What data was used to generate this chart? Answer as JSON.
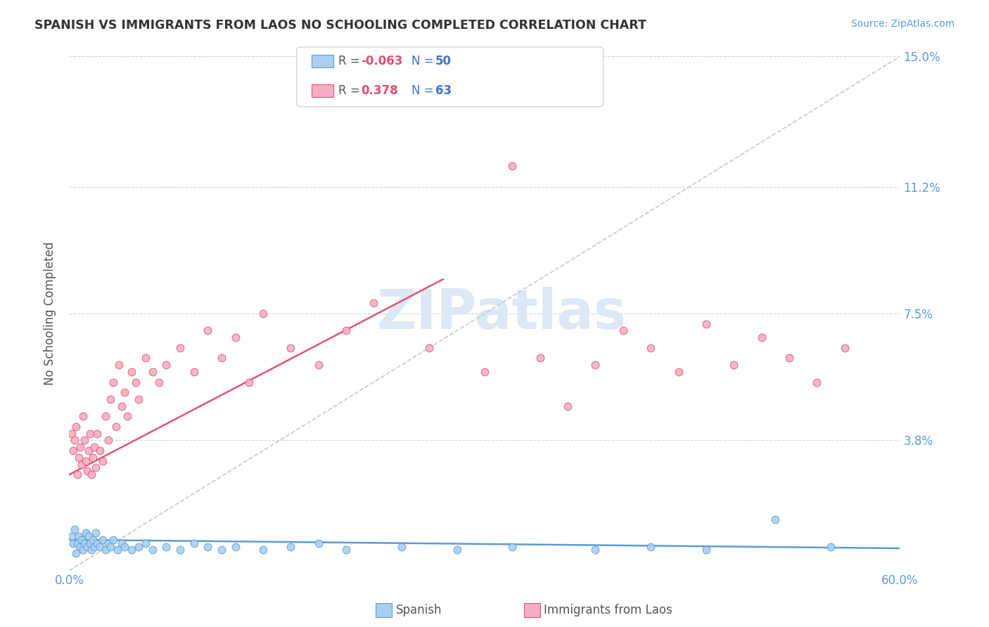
{
  "title": "SPANISH VS IMMIGRANTS FROM LAOS NO SCHOOLING COMPLETED CORRELATION CHART",
  "source": "Source: ZipAtlas.com",
  "ylabel": "No Schooling Completed",
  "xlim": [
    0.0,
    0.6
  ],
  "ylim": [
    0.0,
    0.15
  ],
  "ytick_labels": [
    "3.8%",
    "7.5%",
    "11.2%",
    "15.0%"
  ],
  "ytick_values": [
    0.038,
    0.075,
    0.112,
    0.15
  ],
  "background_color": "#ffffff",
  "spanish_scatter": {
    "x": [
      0.002,
      0.003,
      0.004,
      0.005,
      0.006,
      0.007,
      0.008,
      0.009,
      0.01,
      0.011,
      0.012,
      0.013,
      0.014,
      0.015,
      0.016,
      0.017,
      0.018,
      0.019,
      0.02,
      0.022,
      0.024,
      0.026,
      0.028,
      0.03,
      0.032,
      0.035,
      0.038,
      0.04,
      0.045,
      0.05,
      0.055,
      0.06,
      0.07,
      0.08,
      0.09,
      0.1,
      0.11,
      0.12,
      0.14,
      0.16,
      0.18,
      0.2,
      0.24,
      0.28,
      0.32,
      0.38,
      0.42,
      0.46,
      0.51,
      0.55
    ],
    "y": [
      0.01,
      0.008,
      0.012,
      0.005,
      0.008,
      0.01,
      0.007,
      0.009,
      0.006,
      0.008,
      0.011,
      0.007,
      0.01,
      0.008,
      0.006,
      0.009,
      0.007,
      0.011,
      0.008,
      0.007,
      0.009,
      0.006,
      0.008,
      0.007,
      0.009,
      0.006,
      0.008,
      0.007,
      0.006,
      0.007,
      0.008,
      0.006,
      0.007,
      0.006,
      0.008,
      0.007,
      0.006,
      0.007,
      0.006,
      0.007,
      0.008,
      0.006,
      0.007,
      0.006,
      0.007,
      0.006,
      0.007,
      0.006,
      0.015,
      0.007
    ]
  },
  "laos_scatter": {
    "x": [
      0.002,
      0.003,
      0.004,
      0.005,
      0.006,
      0.007,
      0.008,
      0.009,
      0.01,
      0.011,
      0.012,
      0.013,
      0.014,
      0.015,
      0.016,
      0.017,
      0.018,
      0.019,
      0.02,
      0.022,
      0.024,
      0.026,
      0.028,
      0.03,
      0.032,
      0.034,
      0.036,
      0.038,
      0.04,
      0.042,
      0.045,
      0.048,
      0.05,
      0.055,
      0.06,
      0.065,
      0.07,
      0.08,
      0.09,
      0.1,
      0.11,
      0.12,
      0.13,
      0.14,
      0.16,
      0.18,
      0.2,
      0.22,
      0.26,
      0.3,
      0.32,
      0.34,
      0.36,
      0.38,
      0.4,
      0.42,
      0.44,
      0.46,
      0.48,
      0.5,
      0.52,
      0.54,
      0.56
    ],
    "y": [
      0.04,
      0.035,
      0.038,
      0.042,
      0.028,
      0.033,
      0.036,
      0.031,
      0.045,
      0.038,
      0.032,
      0.029,
      0.035,
      0.04,
      0.028,
      0.033,
      0.036,
      0.03,
      0.04,
      0.035,
      0.032,
      0.045,
      0.038,
      0.05,
      0.055,
      0.042,
      0.06,
      0.048,
      0.052,
      0.045,
      0.058,
      0.055,
      0.05,
      0.062,
      0.058,
      0.055,
      0.06,
      0.065,
      0.058,
      0.07,
      0.062,
      0.068,
      0.055,
      0.075,
      0.065,
      0.06,
      0.07,
      0.078,
      0.065,
      0.058,
      0.118,
      0.062,
      0.048,
      0.06,
      0.07,
      0.065,
      0.058,
      0.072,
      0.06,
      0.068,
      0.062,
      0.055,
      0.065
    ]
  },
  "spanish_trend": {
    "x": [
      0.0,
      0.6
    ],
    "y": [
      0.009,
      0.0065
    ],
    "color": "#5b9bd5",
    "linewidth": 1.8
  },
  "laos_trend": {
    "x": [
      0.0,
      0.27
    ],
    "y": [
      0.028,
      0.085
    ],
    "color": "#e05575",
    "linewidth": 1.8
  },
  "diagonal": {
    "x": [
      0.0,
      0.6
    ],
    "y": [
      0.0,
      0.15
    ],
    "color": "#c8c8c8",
    "linestyle": "--",
    "linewidth": 1.2
  },
  "legend": {
    "R1": "-0.063",
    "N1": "50",
    "R2": "0.378",
    "N2": "63",
    "blue_face": "#a8d0f0",
    "blue_edge": "#5b9bd5",
    "pink_face": "#f4b0c0",
    "pink_edge": "#e05575",
    "R_color_neg": "#e05070",
    "R_color_pos": "#e05070",
    "N_color": "#4472c4",
    "text_color": "#555555"
  },
  "bottom_legend": {
    "spanish_label": "Spanish",
    "laos_label": "Immigrants from Laos",
    "blue_face": "#a8d0f0",
    "blue_edge": "#5b9bd5",
    "pink_face": "#f4b0c0",
    "pink_edge": "#e05575"
  },
  "watermark_color": "#dce8f5",
  "tick_color": "#5b9bd5",
  "grid_color": "#c8d8ec",
  "ylabel_color": "#555555"
}
